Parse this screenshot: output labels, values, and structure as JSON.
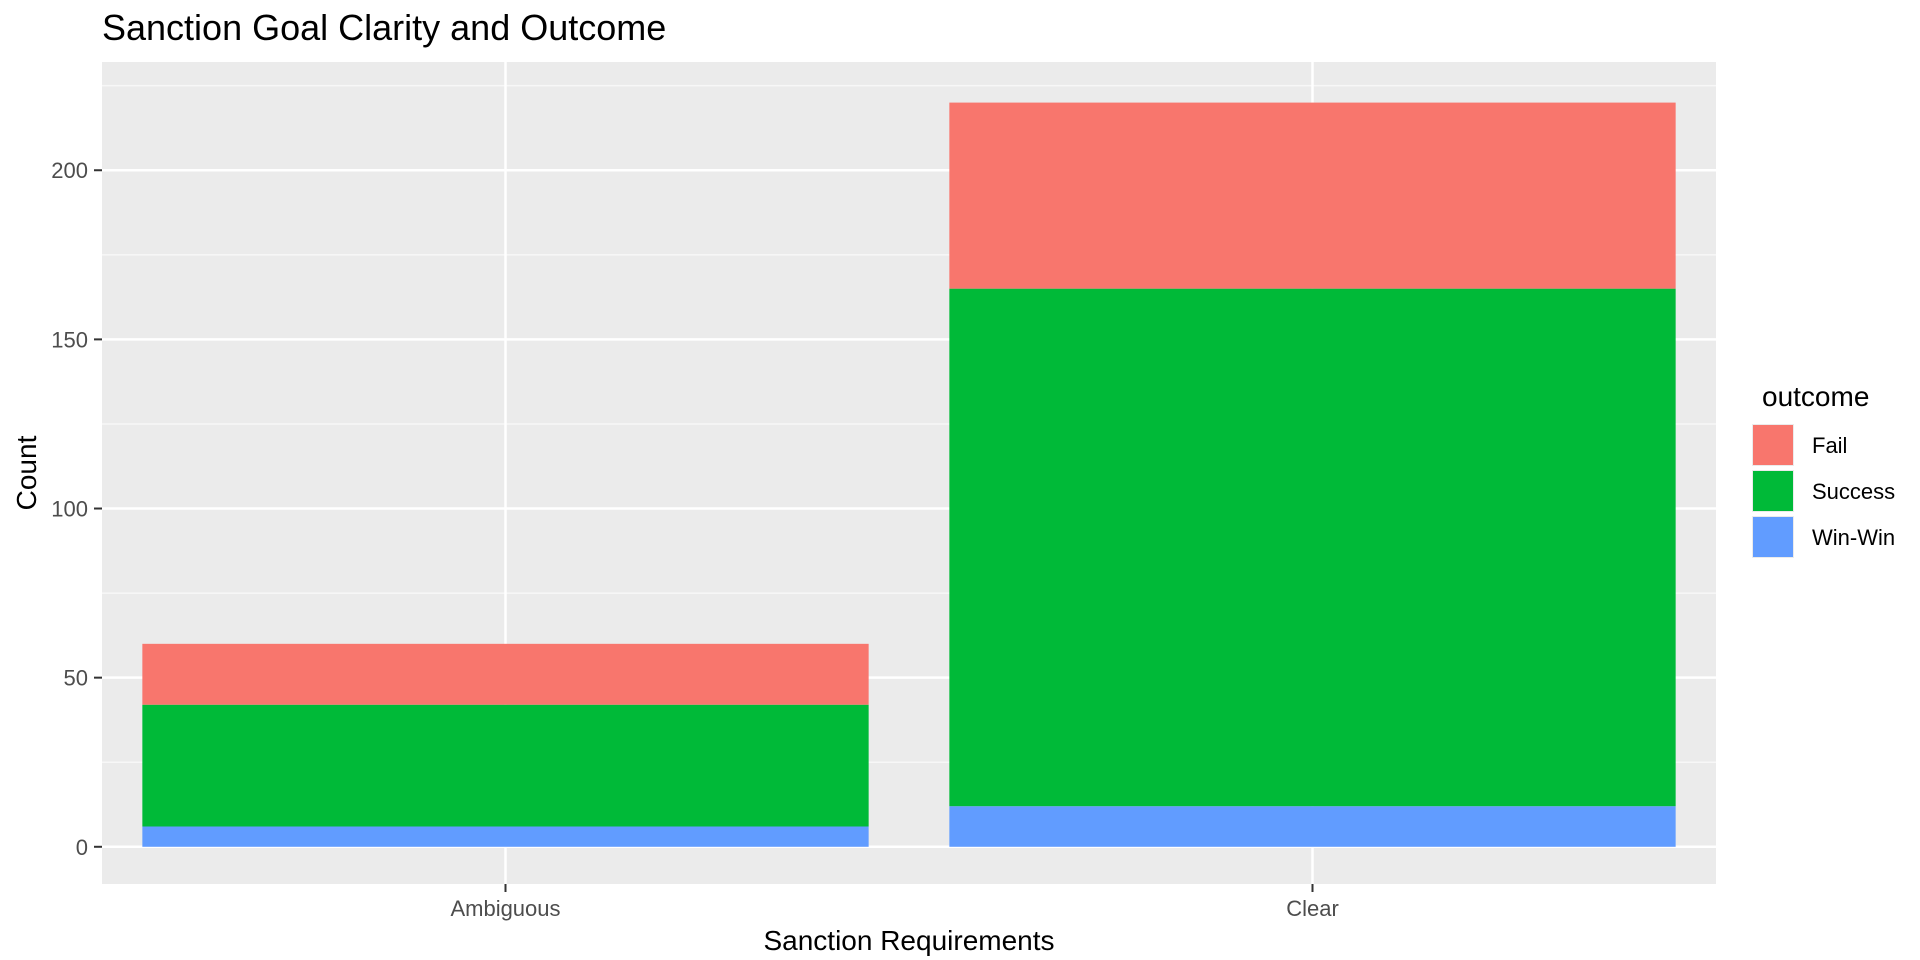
{
  "chart_data": {
    "type": "bar",
    "stacked": true,
    "title": "Sanction Goal Clarity and Outcome",
    "xlabel": "Sanction Requirements",
    "ylabel": "Count",
    "categories": [
      "Ambiguous",
      "Clear"
    ],
    "series": [
      {
        "name": "Fail",
        "values": [
          18,
          55
        ],
        "color": "#F8766D"
      },
      {
        "name": "Success",
        "values": [
          36,
          153
        ],
        "color": "#00BA38"
      },
      {
        "name": "Win-Win",
        "values": [
          6,
          12
        ],
        "color": "#619CFF"
      }
    ],
    "stack_order_bottom_to_top": [
      "Win-Win",
      "Success",
      "Fail"
    ],
    "ylim": [
      -11,
      232
    ],
    "yticks": [
      0,
      50,
      100,
      150,
      200
    ],
    "ytick_labels": [
      "0",
      "50",
      "100",
      "150",
      "200"
    ],
    "grid": true,
    "legend": {
      "title": "outcome",
      "placement": "right",
      "entries": [
        "Fail",
        "Success",
        "Win-Win"
      ]
    },
    "colors": {
      "panel_background": "#EBEBEB",
      "grid_major": "#FFFFFF",
      "grid_minor": "#F7F7F7",
      "tick_text": "#4D4D4D"
    }
  }
}
